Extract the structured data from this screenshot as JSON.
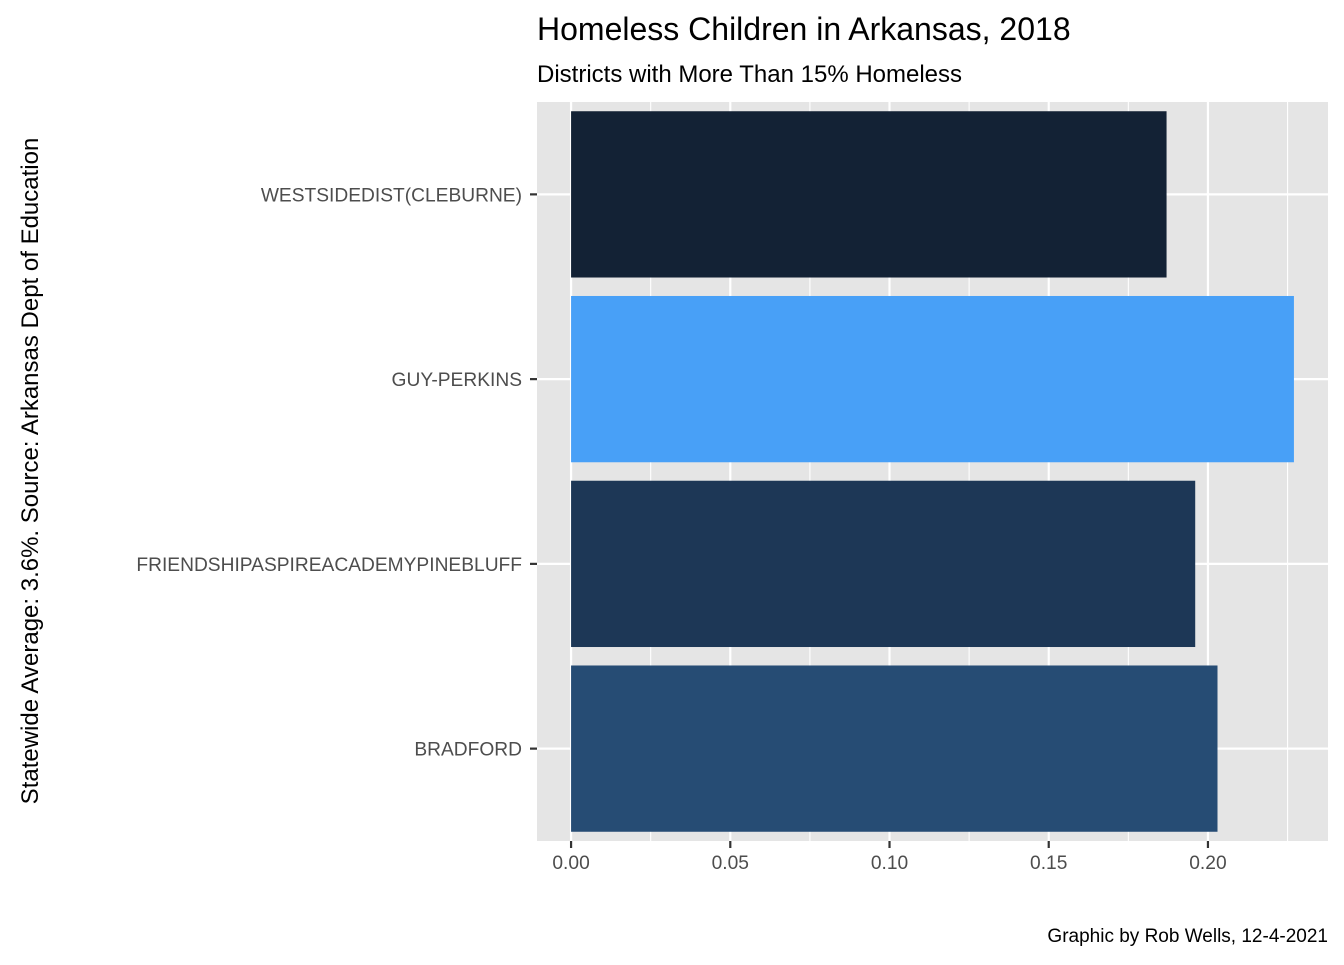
{
  "chart_data": {
    "type": "bar",
    "orientation": "horizontal",
    "title": "Homeless Children in Arkansas, 2018",
    "subtitle": "Districts with More Than 15% Homeless",
    "caption": "Graphic by Rob Wells, 12-4-2021",
    "ylabel": "Statewide Average: 3.6%. Source: Arkansas Dept of Education",
    "xlabel": "",
    "categories": [
      "WESTSIDEDIST(CLEBURNE)",
      "GUY-PERKINS",
      "FRIENDSHIPASPIREACADEMYPINEBLUFF",
      "BRADFORD"
    ],
    "values": [
      0.187,
      0.227,
      0.196,
      0.203
    ],
    "bar_colors": [
      "#132235",
      "#48A0F7",
      "#1D3756",
      "#264C74"
    ],
    "xlim": [
      -0.0107,
      0.2377
    ],
    "x_ticks": [
      0.0,
      0.05,
      0.1,
      0.15,
      0.2
    ],
    "x_tick_labels": [
      "0.00",
      "0.05",
      "0.10",
      "0.15",
      "0.20"
    ],
    "panel_background": "#E5E5E5",
    "grid": true,
    "legend": "none"
  }
}
